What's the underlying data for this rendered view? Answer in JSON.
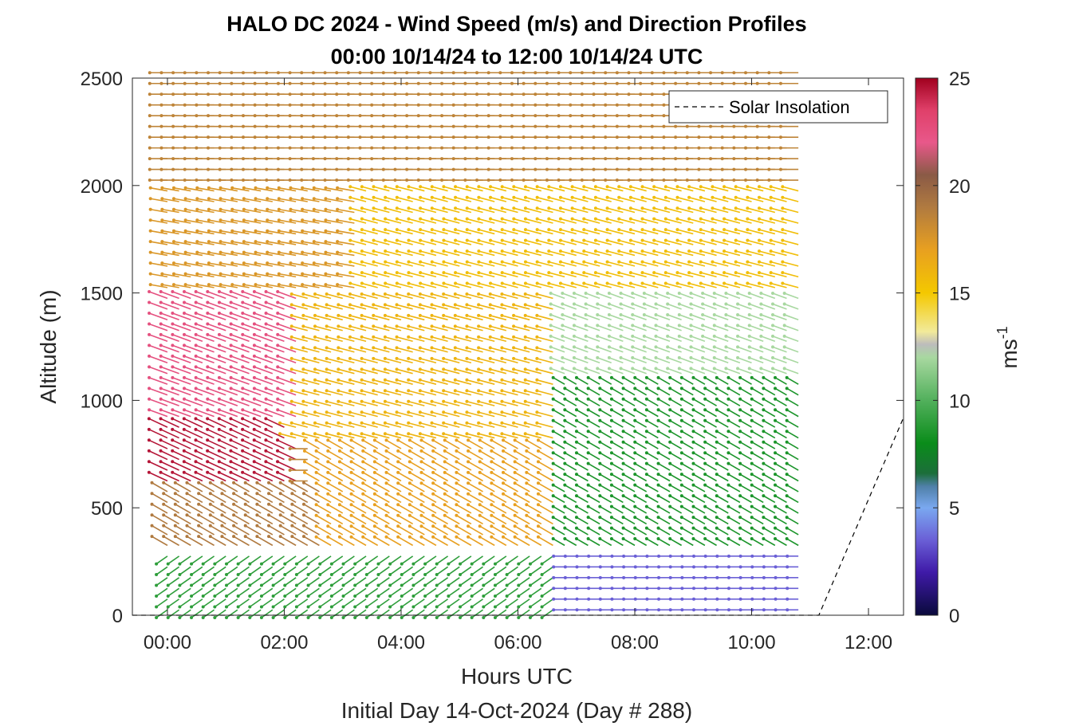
{
  "chart_data": {
    "type": "wind-barb-profile",
    "title": "HALO DC 2024 - Wind Speed (m/s) and Direction Profiles",
    "subtitle": "00:00 10/14/24 to 12:00 10/14/24  UTC",
    "xlabel": "Hours UTC",
    "xlabel2": "Initial Day 14-Oct-2024 (Day # 288)",
    "ylabel": "Altitude (m)",
    "xlim": [
      -0.6,
      12.6
    ],
    "ylim": [
      0,
      2500
    ],
    "x_ticks": [
      {
        "value": 0,
        "label": "00:00"
      },
      {
        "value": 2,
        "label": "02:00"
      },
      {
        "value": 4,
        "label": "04:00"
      },
      {
        "value": 6,
        "label": "06:00"
      },
      {
        "value": 8,
        "label": "08:00"
      },
      {
        "value": 10,
        "label": "10:00"
      },
      {
        "value": 12,
        "label": "12:00"
      }
    ],
    "y_ticks": [
      {
        "value": 0,
        "label": "0"
      },
      {
        "value": 500,
        "label": "500"
      },
      {
        "value": 1000,
        "label": "1000"
      },
      {
        "value": 1500,
        "label": "1500"
      },
      {
        "value": 2000,
        "label": "2000"
      },
      {
        "value": 2500,
        "label": "2500"
      }
    ],
    "grid": false,
    "legend": {
      "position": "top-right",
      "entries": [
        "Solar Insolation"
      ]
    },
    "colorbar": {
      "label": "ms",
      "label_exponent": "-1",
      "range": [
        0,
        25
      ],
      "ticks": [
        {
          "value": 0,
          "label": "0"
        },
        {
          "value": 5,
          "label": "5"
        },
        {
          "value": 10,
          "label": "10"
        },
        {
          "value": 15,
          "label": "15"
        },
        {
          "value": 20,
          "label": "20"
        },
        {
          "value": 25,
          "label": "25"
        }
      ],
      "stops": [
        {
          "value": 0,
          "color": "#0a0a3c"
        },
        {
          "value": 2,
          "color": "#3f1aa8"
        },
        {
          "value": 3.5,
          "color": "#6a5fd6"
        },
        {
          "value": 5,
          "color": "#7aa8f0"
        },
        {
          "value": 6,
          "color": "#4f80a8"
        },
        {
          "value": 6.6,
          "color": "#1c6e3a"
        },
        {
          "value": 8,
          "color": "#0a8c1a"
        },
        {
          "value": 10,
          "color": "#52b05c"
        },
        {
          "value": 12,
          "color": "#a8d8a0"
        },
        {
          "value": 12.6,
          "color": "#bcbcbc"
        },
        {
          "value": 13.2,
          "color": "#f2ea9a"
        },
        {
          "value": 15,
          "color": "#f4c800"
        },
        {
          "value": 17,
          "color": "#e8a020"
        },
        {
          "value": 19,
          "color": "#b07a40"
        },
        {
          "value": 20.5,
          "color": "#8a5a46"
        },
        {
          "value": 22,
          "color": "#e8588a"
        },
        {
          "value": 23.5,
          "color": "#e0406a"
        },
        {
          "value": 25,
          "color": "#a0001e"
        }
      ]
    },
    "solar_insolation": [
      {
        "x": -0.6,
        "y": 0
      },
      {
        "x": 11.15,
        "y": 0
      },
      {
        "x": 12.6,
        "y": 920
      }
    ],
    "profile_times": {
      "start": 0,
      "end": 10.8,
      "step": 0.2
    },
    "profile_heights": {
      "start": 25,
      "end": 2500,
      "step": 50
    },
    "speed_zones": [
      {
        "t0": 0,
        "t1": 10.8,
        "z0": 2000,
        "z1": 2500,
        "speed": 18.5,
        "direction": 270
      },
      {
        "t0": 0,
        "t1": 3.3,
        "z0": 1500,
        "z1": 2000,
        "speed": 17.5,
        "direction": 280
      },
      {
        "t0": 3.3,
        "t1": 10.8,
        "z0": 1500,
        "z1": 2000,
        "speed": 15.5,
        "direction": 285
      },
      {
        "t0": 0,
        "t1": 2.2,
        "z0": 900,
        "z1": 1500,
        "speed": 22.5,
        "direction": 290
      },
      {
        "t0": 2.2,
        "t1": 6.7,
        "z0": 800,
        "z1": 1500,
        "speed": 16,
        "direction": 285
      },
      {
        "t0": 0,
        "t1": 2.2,
        "z0": 600,
        "z1": 900,
        "speed": 24.5,
        "direction": 295
      },
      {
        "t0": 0,
        "t1": 2.6,
        "z0": 300,
        "z1": 600,
        "speed": 19,
        "direction": 300
      },
      {
        "t0": 2.6,
        "t1": 6.7,
        "z0": 300,
        "z1": 800,
        "speed": 17,
        "direction": 300
      },
      {
        "t0": 6.7,
        "t1": 10.8,
        "z0": 1100,
        "z1": 1500,
        "speed": 12,
        "direction": 290
      },
      {
        "t0": 6.7,
        "t1": 10.8,
        "z0": 300,
        "z1": 1100,
        "speed": 8.5,
        "direction": 300
      },
      {
        "t0": 0,
        "t1": 6.7,
        "z0": 0,
        "z1": 300,
        "speed": 9,
        "direction": 235
      },
      {
        "t0": 6.7,
        "t1": 10.8,
        "z0": 0,
        "z1": 300,
        "speed": 3.5,
        "direction": 270
      }
    ]
  }
}
